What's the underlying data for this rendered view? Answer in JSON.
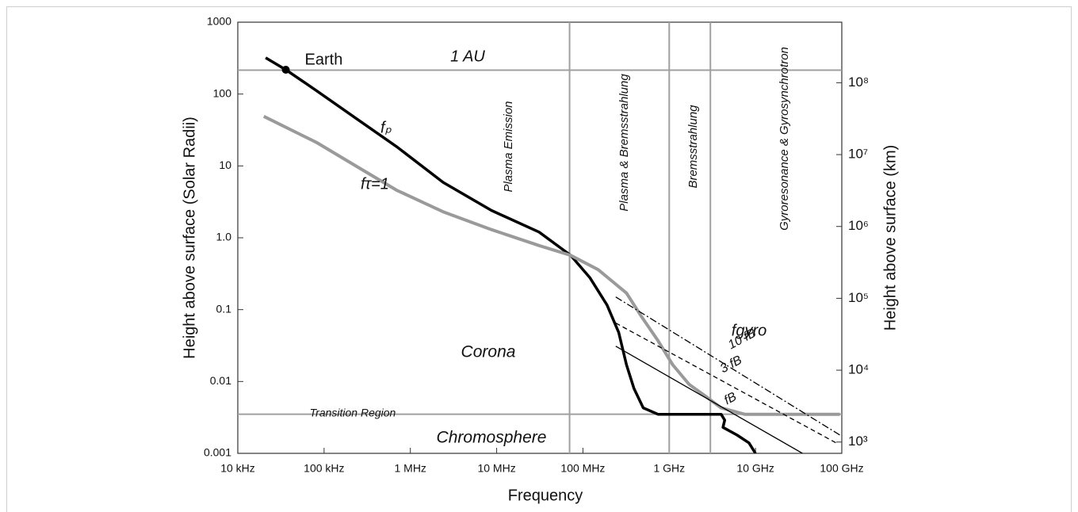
{
  "chart_data": {
    "type": "line",
    "xlabel": "Frequency",
    "ylabel": "Height above surface (Solar Radii)",
    "y2label": "Height above surface (km)",
    "xscale": "log",
    "yscale": "log",
    "xlim": [
      10000,
      100000000000
    ],
    "xticks": [
      {
        "value": 10000,
        "label": "10 kHz"
      },
      {
        "value": 100000,
        "label": "100 kHz"
      },
      {
        "value": 1000000,
        "label": "1 MHz"
      },
      {
        "value": 10000000,
        "label": "10 MHz"
      },
      {
        "value": 100000000,
        "label": "100 MHz"
      },
      {
        "value": 1000000000,
        "label": "1 GHz"
      },
      {
        "value": 10000000000,
        "label": "10 GHz"
      },
      {
        "value": 100000000000,
        "label": "100 GHz"
      }
    ],
    "ylim": [
      0.001,
      1000
    ],
    "yticks": [
      1000,
      100,
      10,
      {
        "value": 1,
        "label": "1.0"
      },
      0.1,
      0.01,
      0.001
    ],
    "y2lim": [
      696,
      696000000
    ],
    "y2ticks": [
      {
        "value": 100000000,
        "label": "10⁸"
      },
      {
        "value": 10000000,
        "label": "10⁷"
      },
      {
        "value": 1000000,
        "label": "10⁶"
      },
      {
        "value": 100000,
        "label": "10⁵"
      },
      {
        "value": 10000,
        "label": "10⁴"
      },
      {
        "value": 1000,
        "label": "10³"
      }
    ],
    "series": [
      {
        "name": "fₚ",
        "color": "#000000",
        "linestyle": "solid",
        "linewidth": 3.5,
        "x": [
          21000,
          36000,
          83000,
          240000,
          690000,
          2400000,
          8700000,
          31000000,
          72000000,
          120000000,
          190000000,
          260000000,
          320000000,
          390000000,
          500000000,
          740000000,
          1700000000,
          3200000000,
          4000000000,
          4400000000,
          4200000000,
          6100000000,
          8400000000,
          10000000000
        ],
        "values": [
          320,
          218,
          110,
          45,
          18.6,
          5.9,
          2.4,
          1.2,
          0.57,
          0.28,
          0.116,
          0.048,
          0.017,
          0.008,
          0.0043,
          0.0035,
          0.0035,
          0.0035,
          0.0035,
          0.0029,
          0.0023,
          0.0018,
          0.0014,
          0.001
        ]
      },
      {
        "name": "fτ=1",
        "color": "#9a9a9a",
        "linestyle": "solid",
        "linewidth": 4,
        "x": [
          20000,
          83000,
          240000,
          690000,
          2400000,
          8700000,
          31000000,
          72000000,
          150000000,
          320000000,
          480000000,
          740000000,
          1100000000,
          1700000000,
          2600000000,
          4000000000,
          7500000000,
          27000000000,
          95000000000
        ],
        "values": [
          49,
          21,
          9.8,
          4.6,
          2.3,
          1.3,
          0.78,
          0.57,
          0.36,
          0.17,
          0.079,
          0.037,
          0.017,
          0.0091,
          0.0063,
          0.0043,
          0.0035,
          0.0035,
          0.0035
        ]
      },
      {
        "name": "fB",
        "color": "#000000",
        "linestyle": "solid",
        "linewidth": 1.3,
        "x": [
          240000000,
          35000000000
        ],
        "values": [
          0.031,
          0.001
        ]
      },
      {
        "name": "3 fB",
        "color": "#000000",
        "linestyle": "dashed",
        "linewidth": 1.3,
        "x": [
          240000000,
          86000000000
        ],
        "values": [
          0.065,
          0.0014
        ]
      },
      {
        "name": "10 fB",
        "color": "#000000",
        "linestyle": "dashdot",
        "linewidth": 1.3,
        "x": [
          240000000,
          95000000000
        ],
        "values": [
          0.15,
          0.0018
        ]
      }
    ],
    "points": [
      {
        "label": "Earth",
        "x": 36000,
        "y": 218
      }
    ],
    "hlines": [
      {
        "value": 215,
        "label": "1 AU"
      },
      {
        "value": 0.0035,
        "label": "Transition Region"
      }
    ],
    "vlines": [
      70000000,
      1000000000,
      3000000000
    ],
    "regions": [
      "Plasma Emission",
      "Plasma & Bremsstrahlung",
      "Bremsstrahlung",
      "Gyroresonance & Gyrosynchrotron"
    ],
    "annotations": [
      "Corona",
      "Chromosphere",
      "fgyro"
    ],
    "reference_color": "#a0a0a0"
  }
}
